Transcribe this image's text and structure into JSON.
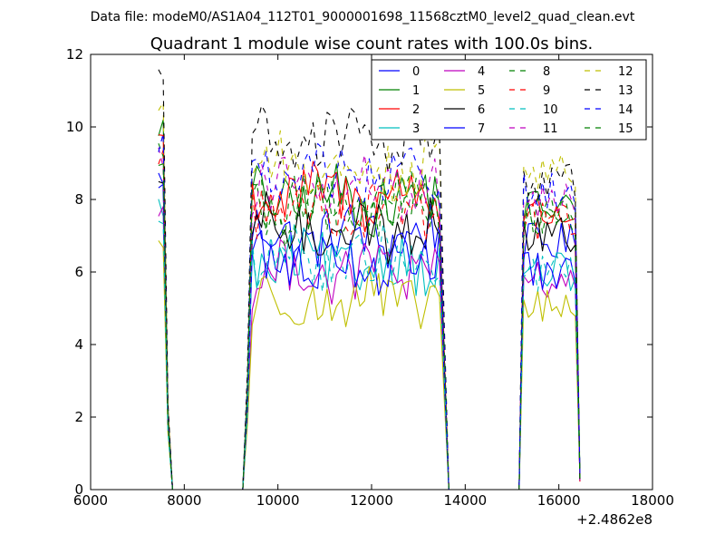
{
  "chart_data": {
    "type": "line",
    "suptitle": "Data file: modeM0/AS1A04_112T01_9000001698_11568cztM0_level2_quad_clean.evt",
    "title": "Quadrant 1 module wise count rates with 100.0s bins.",
    "xlabel": "",
    "ylabel": "",
    "xlim": [
      6000,
      18000
    ],
    "ylim": [
      0,
      12
    ],
    "xticks": [
      6000,
      8000,
      10000,
      12000,
      14000,
      16000,
      18000
    ],
    "yticks": [
      0,
      2,
      4,
      6,
      8,
      10,
      12
    ],
    "x_offset_label": "+2.4862e8",
    "grid": false,
    "legend": "top-right",
    "segments": [
      {
        "start": 7450,
        "end": 7750,
        "step": 100
      },
      {
        "start": 7850,
        "end": 9150,
        "step": 1300
      },
      {
        "start": 9250,
        "end": 13650,
        "step": 100
      },
      {
        "start": 13750,
        "end": 15050,
        "step": 1300
      },
      {
        "start": 15150,
        "end": 16450,
        "step": 100
      }
    ],
    "series": [
      {
        "name": "0",
        "color": "#0000ff",
        "dash": "solid",
        "levels": [
          8.6,
          7.0,
          6.8
        ]
      },
      {
        "name": "1",
        "color": "#008000",
        "dash": "solid",
        "levels": [
          10.0,
          8.0,
          7.8
        ]
      },
      {
        "name": "2",
        "color": "#ff0000",
        "dash": "solid",
        "levels": [
          9.8,
          8.1,
          7.6
        ]
      },
      {
        "name": "3",
        "color": "#00bfbf",
        "dash": "solid",
        "levels": [
          7.8,
          6.2,
          6.0
        ]
      },
      {
        "name": "4",
        "color": "#bf00bf",
        "dash": "solid",
        "levels": [
          7.7,
          6.0,
          5.8
        ]
      },
      {
        "name": "5",
        "color": "#bfbf00",
        "dash": "solid",
        "levels": [
          6.8,
          5.2,
          5.0
        ]
      },
      {
        "name": "6",
        "color": "#000000",
        "dash": "solid",
        "levels": [
          8.2,
          7.2,
          7.0
        ]
      },
      {
        "name": "7",
        "color": "#0000ff",
        "dash": "solid",
        "levels": [
          8.4,
          6.3,
          6.0
        ]
      },
      {
        "name": "8",
        "color": "#008000",
        "dash": "dashed",
        "levels": [
          9.4,
          7.7,
          7.6
        ]
      },
      {
        "name": "9",
        "color": "#ff0000",
        "dash": "dashed",
        "levels": [
          9.2,
          7.8,
          7.4
        ]
      },
      {
        "name": "10",
        "color": "#00bfbf",
        "dash": "dashed",
        "levels": [
          7.4,
          6.3,
          6.0
        ]
      },
      {
        "name": "11",
        "color": "#bf00bf",
        "dash": "dashed",
        "levels": [
          9.2,
          8.3,
          8.0
        ]
      },
      {
        "name": "12",
        "color": "#bfbf00",
        "dash": "dashed",
        "levels": [
          10.6,
          8.9,
          8.8
        ]
      },
      {
        "name": "13",
        "color": "#000000",
        "dash": "dashed",
        "levels": [
          11.5,
          9.6,
          8.5
        ]
      },
      {
        "name": "14",
        "color": "#0000ff",
        "dash": "dashed",
        "levels": [
          9.6,
          8.6,
          8.3
        ]
      },
      {
        "name": "15",
        "color": "#008000",
        "dash": "dashed",
        "levels": [
          9.0,
          7.9,
          7.5
        ]
      }
    ]
  }
}
